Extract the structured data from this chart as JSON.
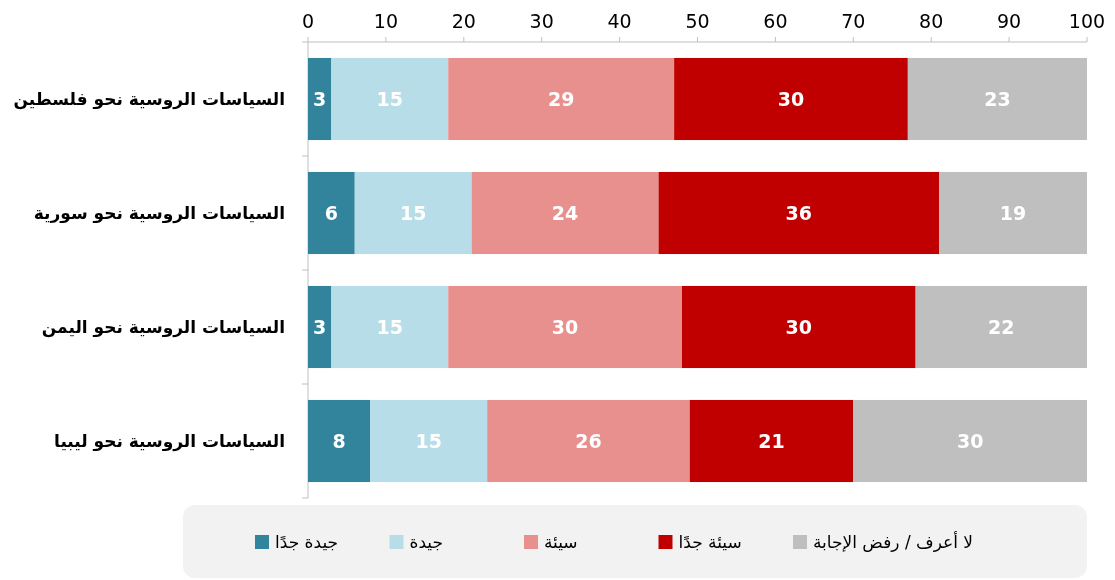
{
  "chart_data": {
    "type": "bar",
    "orientation": "horizontal",
    "stacked": true,
    "data_labels": true,
    "legend": "bottom",
    "grid": false,
    "categories": [
      "السياسات الروسية نحو فلسطين",
      "السياسات الروسية نحو سورية",
      "السياسات الروسية نحو اليمن",
      "السياسات الروسية نحو ليبيا"
    ],
    "xlim": [
      0,
      100
    ],
    "xticks": [
      0,
      10,
      20,
      30,
      40,
      50,
      60,
      70,
      80,
      90,
      100
    ],
    "series": [
      {
        "name": "جيدة جدًا",
        "color": "#31849b",
        "values": [
          3,
          6,
          3,
          8
        ]
      },
      {
        "name": "جيدة",
        "color": "#b7dee8",
        "values": [
          15,
          15,
          15,
          15
        ]
      },
      {
        "name": "سيئة",
        "color": "#e8908e",
        "values": [
          29,
          24,
          30,
          26
        ]
      },
      {
        "name": "سيئة جدًا",
        "color": "#c00000",
        "values": [
          30,
          36,
          30,
          21
        ]
      },
      {
        "name": "لا أعرف / رفض الإجابة",
        "color": "#bfbfbf",
        "values": [
          23,
          19,
          22,
          30
        ]
      }
    ]
  }
}
